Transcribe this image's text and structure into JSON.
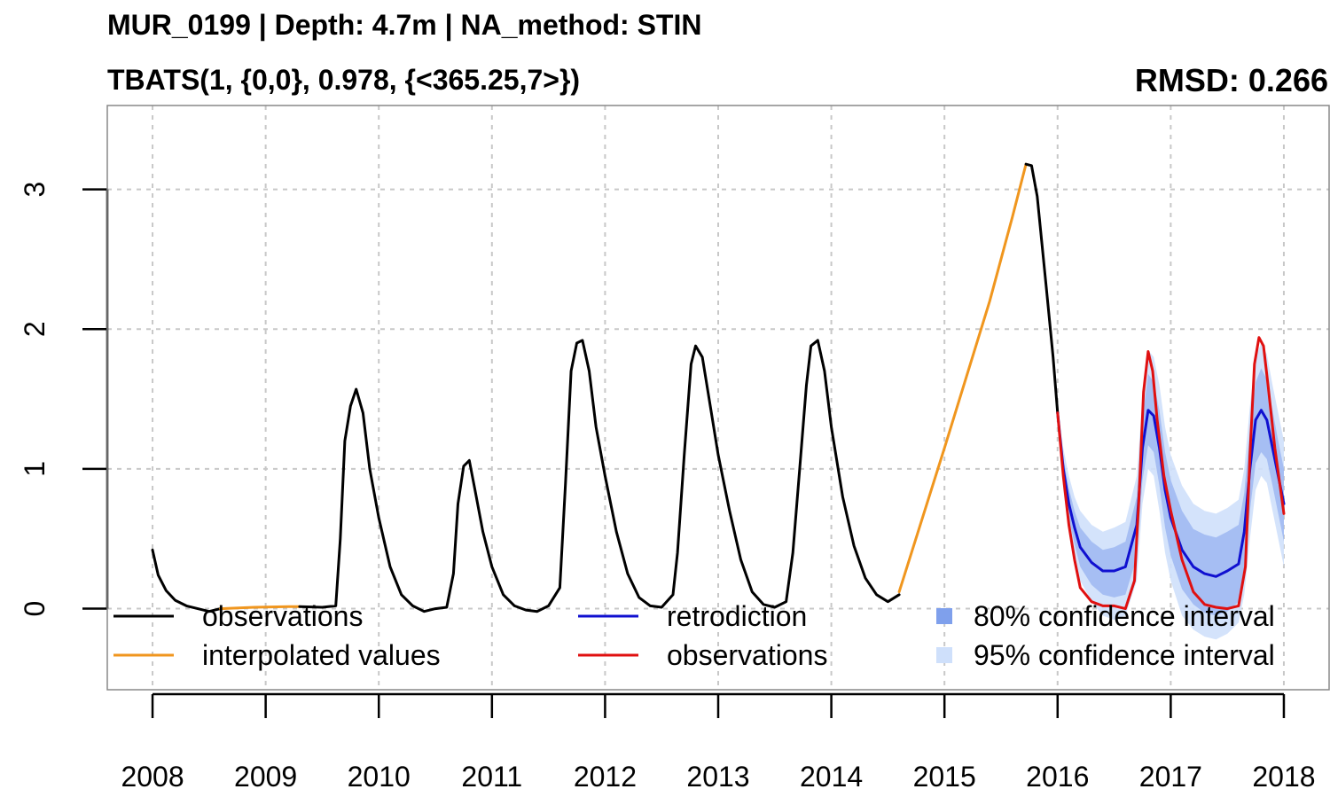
{
  "header": {
    "title": "MUR_0199 | Depth: 4.7m | NA_method: STIN",
    "subtitle": "TBATS(1, {0,0}, 0.978, {<365.25,7>})",
    "rmsd": "RMSD: 0.266"
  },
  "legend": [
    {
      "label": "observations",
      "kind": "line",
      "color": "#000000"
    },
    {
      "label": "interpolated values",
      "kind": "line",
      "color": "#f0961e"
    },
    {
      "label": "retrodiction",
      "kind": "line",
      "color": "#1010d0"
    },
    {
      "label": "observations",
      "kind": "line",
      "color": "#e01010"
    },
    {
      "label": "80% confidence interval",
      "kind": "box",
      "color": "#7fa0ec"
    },
    {
      "label": "95% confidence interval",
      "kind": "box",
      "color": "#cfe0fb"
    }
  ],
  "chart_data": {
    "type": "line",
    "title": "MUR_0199 | Depth: 4.7m | NA_method: STIN",
    "subtitle": "TBATS(1, {0,0}, 0.978, {<365.25,7>})",
    "annotation": "RMSD: 0.266",
    "xlabel": "",
    "ylabel": "",
    "xlim": [
      2007.6,
      2018.4
    ],
    "ylim": [
      -0.58,
      3.6
    ],
    "x_ticks": [
      2008,
      2009,
      2010,
      2011,
      2012,
      2013,
      2014,
      2015,
      2016,
      2017,
      2018
    ],
    "y_ticks": [
      0,
      1,
      2,
      3
    ],
    "grid": true,
    "legend_position": "bottom",
    "series": [
      {
        "name": "observations",
        "color": "#000000",
        "x": [
          2008.0,
          2008.05,
          2008.12,
          2008.2,
          2008.3,
          2008.4,
          2008.5,
          2008.6
        ],
        "y": [
          0.42,
          0.24,
          0.13,
          0.06,
          0.02,
          0.0,
          -0.02,
          0.0
        ]
      },
      {
        "name": "interpolated values",
        "color": "#f0961e",
        "x": [
          2008.6,
          2008.9,
          2009.2,
          2009.3
        ],
        "y": [
          0.0,
          0.01,
          0.015,
          0.015
        ]
      },
      {
        "name": "observations",
        "color": "#000000",
        "x": [
          2009.3,
          2009.5,
          2009.62,
          2009.66,
          2009.7,
          2009.75,
          2009.8,
          2009.86,
          2009.92,
          2010.0,
          2010.1,
          2010.2,
          2010.3,
          2010.4,
          2010.5,
          2010.6,
          2010.66,
          2010.7,
          2010.75,
          2010.8,
          2010.85,
          2010.92,
          2011.0,
          2011.1,
          2011.2,
          2011.3,
          2011.4,
          2011.5,
          2011.6,
          2011.65,
          2011.7,
          2011.75,
          2011.8,
          2011.86,
          2011.92,
          2012.0,
          2012.1,
          2012.2,
          2012.3,
          2012.4,
          2012.5,
          2012.6,
          2012.64,
          2012.7,
          2012.76,
          2012.8,
          2012.86,
          2012.92,
          2013.0,
          2013.1,
          2013.2,
          2013.3,
          2013.4,
          2013.5,
          2013.6,
          2013.66,
          2013.72,
          2013.78,
          2013.82,
          2013.88,
          2013.94,
          2014.0,
          2014.1,
          2014.2,
          2014.3,
          2014.4,
          2014.5,
          2014.6
        ],
        "y": [
          0.015,
          0.01,
          0.02,
          0.5,
          1.2,
          1.45,
          1.57,
          1.4,
          1.0,
          0.65,
          0.3,
          0.1,
          0.02,
          -0.02,
          0.0,
          0.01,
          0.25,
          0.75,
          1.02,
          1.06,
          0.85,
          0.55,
          0.3,
          0.1,
          0.02,
          -0.01,
          -0.02,
          0.02,
          0.15,
          0.9,
          1.7,
          1.9,
          1.92,
          1.7,
          1.3,
          0.95,
          0.55,
          0.25,
          0.08,
          0.02,
          0.01,
          0.1,
          0.4,
          1.1,
          1.75,
          1.88,
          1.8,
          1.5,
          1.1,
          0.7,
          0.35,
          0.12,
          0.03,
          0.01,
          0.05,
          0.4,
          1.0,
          1.6,
          1.88,
          1.92,
          1.7,
          1.3,
          0.8,
          0.45,
          0.22,
          0.1,
          0.05,
          0.1
        ]
      },
      {
        "name": "interpolated values",
        "color": "#f0961e",
        "x": [
          2014.6,
          2015.0,
          2015.4,
          2015.6,
          2015.72
        ],
        "y": [
          0.12,
          1.15,
          2.2,
          2.8,
          3.18
        ]
      },
      {
        "name": "observations",
        "color": "#000000",
        "x": [
          2015.72,
          2015.77,
          2015.82,
          2015.9,
          2015.96,
          2016.0
        ],
        "y": [
          3.18,
          3.17,
          2.95,
          2.3,
          1.8,
          1.4
        ]
      },
      {
        "name": "retrodiction",
        "color": "#1010d0",
        "x": [
          2016.0,
          2016.05,
          2016.1,
          2016.15,
          2016.2,
          2016.3,
          2016.4,
          2016.5,
          2016.6,
          2016.7,
          2016.75,
          2016.8,
          2016.85,
          2016.9,
          2016.95,
          2017.0,
          2017.1,
          2017.2,
          2017.3,
          2017.4,
          2017.5,
          2017.6,
          2017.65,
          2017.7,
          2017.75,
          2017.8,
          2017.85,
          2017.9,
          2017.95,
          2018.0
        ],
        "y": [
          1.4,
          1.0,
          0.75,
          0.58,
          0.44,
          0.33,
          0.27,
          0.27,
          0.3,
          0.6,
          1.15,
          1.42,
          1.38,
          1.15,
          0.85,
          0.65,
          0.42,
          0.3,
          0.25,
          0.23,
          0.27,
          0.32,
          0.55,
          1.0,
          1.35,
          1.42,
          1.35,
          1.15,
          0.95,
          0.75
        ]
      },
      {
        "name": "observations",
        "color": "#e01010",
        "x": [
          2016.0,
          2016.05,
          2016.1,
          2016.15,
          2016.2,
          2016.3,
          2016.4,
          2016.5,
          2016.6,
          2016.68,
          2016.72,
          2016.76,
          2016.8,
          2016.84,
          2016.88,
          2016.94,
          2017.0,
          2017.1,
          2017.2,
          2017.3,
          2017.4,
          2017.5,
          2017.6,
          2017.66,
          2017.7,
          2017.74,
          2017.78,
          2017.82,
          2017.86,
          2017.92,
          2018.0
        ],
        "y": [
          1.4,
          0.95,
          0.6,
          0.35,
          0.15,
          0.05,
          0.02,
          0.02,
          0.0,
          0.2,
          0.8,
          1.55,
          1.84,
          1.7,
          1.35,
          0.95,
          0.7,
          0.35,
          0.12,
          0.03,
          0.01,
          0.0,
          0.02,
          0.3,
          1.1,
          1.75,
          1.94,
          1.88,
          1.6,
          1.15,
          0.68
        ]
      }
    ],
    "intervals": [
      {
        "name": "95% confidence interval",
        "color": "#cfe0fb",
        "x": [
          2016.0,
          2016.05,
          2016.1,
          2016.15,
          2016.2,
          2016.3,
          2016.4,
          2016.5,
          2016.6,
          2016.7,
          2016.75,
          2016.8,
          2016.85,
          2016.9,
          2016.95,
          2017.0,
          2017.1,
          2017.2,
          2017.3,
          2017.4,
          2017.5,
          2017.6,
          2017.65,
          2017.7,
          2017.75,
          2017.8,
          2017.85,
          2017.9,
          2017.95,
          2018.0
        ],
        "lower": [
          1.4,
          0.85,
          0.55,
          0.35,
          0.2,
          0.05,
          -0.05,
          -0.08,
          -0.05,
          0.2,
          0.75,
          1.0,
          0.95,
          0.7,
          0.4,
          0.2,
          -0.05,
          -0.15,
          -0.2,
          -0.22,
          -0.18,
          -0.1,
          0.1,
          0.5,
          0.85,
          0.95,
          0.9,
          0.7,
          0.5,
          0.3
        ],
        "upper": [
          1.4,
          1.15,
          0.95,
          0.8,
          0.7,
          0.6,
          0.55,
          0.58,
          0.62,
          0.95,
          1.5,
          1.85,
          1.8,
          1.6,
          1.3,
          1.1,
          0.88,
          0.75,
          0.7,
          0.68,
          0.72,
          0.78,
          1.0,
          1.45,
          1.8,
          1.9,
          1.82,
          1.6,
          1.4,
          1.2
        ]
      },
      {
        "name": "80% confidence interval",
        "color": "#7fa0ec",
        "x": [
          2016.0,
          2016.05,
          2016.1,
          2016.15,
          2016.2,
          2016.3,
          2016.4,
          2016.5,
          2016.6,
          2016.7,
          2016.75,
          2016.8,
          2016.85,
          2016.9,
          2016.95,
          2017.0,
          2017.1,
          2017.2,
          2017.3,
          2017.4,
          2017.5,
          2017.6,
          2017.65,
          2017.7,
          2017.75,
          2017.8,
          2017.85,
          2017.9,
          2017.95,
          2018.0
        ],
        "lower": [
          1.4,
          0.92,
          0.64,
          0.46,
          0.3,
          0.17,
          0.1,
          0.08,
          0.1,
          0.37,
          0.92,
          1.17,
          1.12,
          0.88,
          0.58,
          0.38,
          0.14,
          0.03,
          -0.03,
          -0.05,
          -0.02,
          0.05,
          0.27,
          0.7,
          1.04,
          1.12,
          1.07,
          0.88,
          0.68,
          0.48
        ],
        "upper": [
          1.4,
          1.08,
          0.86,
          0.7,
          0.58,
          0.48,
          0.42,
          0.44,
          0.48,
          0.8,
          1.36,
          1.68,
          1.62,
          1.42,
          1.12,
          0.92,
          0.7,
          0.57,
          0.53,
          0.51,
          0.55,
          0.6,
          0.83,
          1.28,
          1.62,
          1.72,
          1.64,
          1.42,
          1.2,
          1.0
        ]
      }
    ]
  }
}
